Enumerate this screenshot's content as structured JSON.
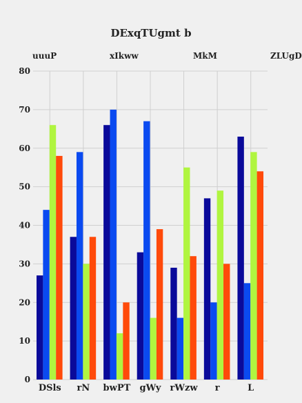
{
  "chart_data": {
    "type": "bar",
    "title": "DExqTUgmt b",
    "categories": [
      "DSls",
      "rN",
      "bwPT",
      "gWy",
      "rWzw",
      "r",
      "L"
    ],
    "series": [
      {
        "name": "uuuP",
        "color": "#0a0a9a",
        "values": [
          27,
          37,
          66,
          33,
          29,
          47,
          63
        ]
      },
      {
        "name": "xIkww",
        "color": "#0a4af0",
        "values": [
          44,
          59,
          70,
          67,
          16,
          20,
          25
        ]
      },
      {
        "name": "MkM",
        "color": "#b0f540",
        "values": [
          66,
          30,
          12,
          16,
          55,
          49,
          59
        ]
      },
      {
        "name": "ZLUgD",
        "color": "#ff4a0a",
        "values": [
          58,
          37,
          20,
          39,
          32,
          30,
          54
        ]
      }
    ],
    "ylim": [
      0,
      80
    ],
    "yticks": [
      0,
      10,
      20,
      30,
      40,
      50,
      60,
      70,
      80
    ],
    "grid": true,
    "legend": "top"
  }
}
